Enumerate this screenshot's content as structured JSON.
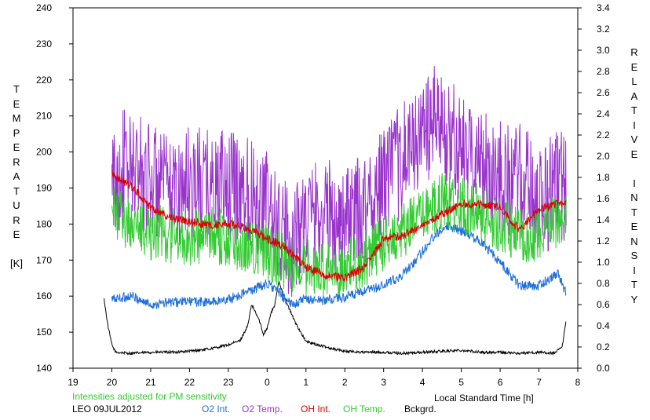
{
  "chart_data": {
    "type": "line",
    "title": "",
    "xlabel": "Local Standard Time [h]",
    "x_ticks": [
      "19",
      "20",
      "21",
      "22",
      "23",
      "0",
      "1",
      "2",
      "3",
      "4",
      "5",
      "6",
      "7",
      "8"
    ],
    "xlim": [
      19,
      32
    ],
    "y_left": {
      "label_lines": [
        "T",
        "E",
        "M",
        "P",
        "E",
        "R",
        "A",
        "T",
        "U",
        "R",
        "E",
        "",
        "[K]"
      ],
      "ylim": [
        140,
        240
      ],
      "ticks": [
        "140",
        "150",
        "160",
        "170",
        "180",
        "190",
        "200",
        "210",
        "220",
        "230",
        "240"
      ]
    },
    "y_right": {
      "label_lines": [
        "R",
        "E",
        "L",
        "A",
        "T",
        "I",
        "V",
        "E",
        "",
        "I",
        "N",
        "T",
        "E",
        "N",
        "S",
        "I",
        "T",
        "Y"
      ],
      "ylim": [
        0.0,
        3.4
      ],
      "ticks": [
        "0.0",
        "0.2",
        "0.4",
        "0.6",
        "0.8",
        "1.0",
        "1.2",
        "1.4",
        "1.6",
        "1.8",
        "2.0",
        "2.2",
        "2.4",
        "2.6",
        "2.8",
        "3.0",
        "3.2",
        "3.4"
      ]
    },
    "grid": false,
    "legend_position": "bottom",
    "note": "Intensities adjusted for PM sensitivity",
    "station": "LEO 09JUL2012",
    "series": [
      {
        "name": "O2 Temp.",
        "axis": "left",
        "color": "#9933cc",
        "noise": 10,
        "x": [
          20.0,
          20.3,
          20.6,
          21.0,
          21.5,
          22.0,
          22.5,
          23.0,
          23.5,
          24.0,
          24.3,
          24.6,
          25.0,
          25.5,
          26.0,
          26.5,
          27.0,
          27.5,
          28.0,
          28.3,
          28.6,
          29.0,
          29.5,
          30.0,
          30.5,
          31.0,
          31.5,
          31.7
        ],
        "y": [
          190,
          196,
          195,
          193,
          188,
          192,
          190,
          190,
          190,
          185,
          178,
          175,
          182,
          183,
          180,
          184,
          192,
          198,
          205,
          208,
          206,
          200,
          197,
          193,
          192,
          187,
          190,
          191
        ]
      },
      {
        "name": "OH Temp.",
        "axis": "left",
        "color": "#33cc33",
        "noise": 5,
        "x": [
          20.0,
          20.2,
          20.5,
          21.0,
          21.5,
          22.0,
          22.5,
          23.0,
          23.5,
          24.0,
          24.5,
          25.0,
          25.5,
          26.0,
          26.5,
          27.0,
          27.5,
          28.0,
          28.3,
          28.6,
          29.0,
          29.5,
          30.0,
          30.5,
          31.0,
          31.5,
          31.7
        ],
        "y": [
          183,
          182,
          180,
          178,
          177,
          176,
          177,
          176,
          174,
          172,
          169,
          168,
          167,
          168,
          170,
          175,
          178,
          182,
          185,
          187,
          185,
          183,
          180,
          176,
          178,
          181,
          180
        ]
      },
      {
        "name": "OH Int.",
        "axis": "right",
        "color": "#dd0000",
        "noise": 0.025,
        "x": [
          20.0,
          20.2,
          20.5,
          21.0,
          21.5,
          22.0,
          22.5,
          23.0,
          23.5,
          24.0,
          24.3,
          24.6,
          25.0,
          25.5,
          26.0,
          26.5,
          27.0,
          27.5,
          28.0,
          28.5,
          29.0,
          29.5,
          30.0,
          30.5,
          31.0,
          31.5,
          31.7
        ],
        "y": [
          1.85,
          1.78,
          1.72,
          1.52,
          1.42,
          1.38,
          1.35,
          1.36,
          1.32,
          1.22,
          1.18,
          1.1,
          0.95,
          0.88,
          0.85,
          0.95,
          1.22,
          1.25,
          1.35,
          1.45,
          1.55,
          1.55,
          1.52,
          1.3,
          1.5,
          1.55,
          1.55
        ]
      },
      {
        "name": "O2 Int.",
        "axis": "right",
        "color": "#1f6fd8",
        "noise": 0.03,
        "x": [
          20.0,
          20.5,
          21.0,
          21.5,
          22.0,
          22.5,
          23.0,
          23.5,
          24.0,
          24.3,
          24.6,
          25.0,
          25.5,
          26.0,
          26.5,
          27.0,
          27.5,
          28.0,
          28.3,
          28.6,
          29.0,
          29.5,
          30.0,
          30.5,
          31.0,
          31.5,
          31.7
        ],
        "y": [
          0.65,
          0.68,
          0.6,
          0.62,
          0.63,
          0.62,
          0.65,
          0.72,
          0.8,
          0.72,
          0.6,
          0.65,
          0.64,
          0.67,
          0.72,
          0.78,
          0.88,
          1.1,
          1.25,
          1.35,
          1.3,
          1.2,
          1.0,
          0.78,
          0.78,
          0.9,
          0.7
        ]
      },
      {
        "name": "Bckgrd.",
        "axis": "right",
        "color": "#000000",
        "noise": 0.008,
        "x": [
          19.8,
          19.9,
          20.0,
          20.1,
          20.5,
          21.0,
          21.5,
          22.0,
          22.5,
          23.0,
          23.3,
          23.5,
          23.6,
          23.8,
          23.9,
          24.0,
          24.1,
          24.2,
          24.3,
          24.5,
          24.7,
          25.0,
          25.5,
          26.0,
          26.5,
          27.0,
          27.5,
          28.0,
          28.5,
          29.0,
          29.5,
          30.0,
          30.5,
          31.0,
          31.4,
          31.6,
          31.7
        ],
        "y": [
          0.65,
          0.4,
          0.22,
          0.15,
          0.14,
          0.15,
          0.15,
          0.16,
          0.18,
          0.22,
          0.26,
          0.4,
          0.6,
          0.45,
          0.32,
          0.38,
          0.52,
          0.6,
          0.82,
          0.62,
          0.45,
          0.25,
          0.2,
          0.16,
          0.15,
          0.15,
          0.14,
          0.15,
          0.16,
          0.17,
          0.15,
          0.15,
          0.14,
          0.15,
          0.14,
          0.2,
          0.45
        ]
      }
    ]
  },
  "legend_colors": {
    "note": "#33cc33",
    "station": "#000000"
  }
}
